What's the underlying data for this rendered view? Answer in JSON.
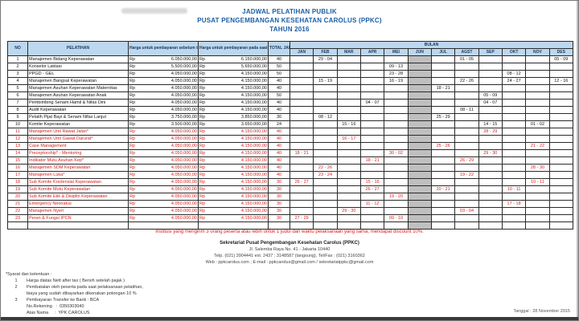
{
  "page_title": {
    "line1": "JADWAL PELATIHAN PUBLIK",
    "line2": "PUSAT PENGEMBANGAN KESEHATAN CAROLUS (PPKC)",
    "line3": "TAHUN 2016"
  },
  "colors": {
    "title_blue": "#1b5ea6",
    "header_fill": "#bdd7ee",
    "red_text": "#d42020",
    "jun_shade": "#bfbfbf"
  },
  "table": {
    "headers": {
      "no": "NO",
      "pelatihan": "PELATIHAN",
      "price_before": "Harga untuk pembayaran sebelum tanggal pelaksanaan*",
      "price_onsite": "Harga untuk pembayaran pada saat pelaksanaan*",
      "total_jam": "TOTAL JAM",
      "bulan": "BULAN"
    },
    "months": [
      "JAN",
      "FEB",
      "MAR",
      "APR",
      "MEI",
      "JUN",
      "JUL",
      "AGST",
      "SEP",
      "OKT",
      "NOV",
      "DES"
    ],
    "currency": "Rp",
    "rows": [
      {
        "no": "1",
        "name": "Manajemen Bidang Keperawatan",
        "price_before": "6.050.000,00",
        "price_onsite": "6.150.000,00",
        "jam": "40",
        "red": false,
        "schedule": {
          "FEB": "29 - 04",
          "AGST": "01 - 05",
          "DES": "05 - 09"
        }
      },
      {
        "no": "2",
        "name": "Konselor Laktasi",
        "price_before": "5.500.000,00",
        "price_onsite": "5.650.000,00",
        "jam": "50",
        "red": false,
        "schedule": {
          "MEI": "09 - 13"
        }
      },
      {
        "no": "3",
        "name": "PPGD - GEL",
        "price_before": "4.050.000,00",
        "price_onsite": "4.150.000,00",
        "jam": "50",
        "red": false,
        "schedule": {
          "MEI": "23 - 28",
          "OKT": "08 - 12"
        }
      },
      {
        "no": "4",
        "name": "Manajemen Bangsal Keperawatan",
        "price_before": "4.050.000,00",
        "price_onsite": "4.150.000,00",
        "jam": "40",
        "red": false,
        "schedule": {
          "FEB": "15 - 19",
          "MEI": "16 - 19",
          "AGST": "22 - 26",
          "OKT": "24 - 27",
          "DES": "12 - 16"
        }
      },
      {
        "no": "5",
        "name": "Manajemen Asuhan Keperawatan Maternitas",
        "price_before": "4.050.000,00",
        "price_onsite": "4.150.000,00",
        "jam": "40",
        "red": false,
        "schedule": {
          "JUL": "18 - 21"
        }
      },
      {
        "no": "6",
        "name": "Manajemen Asuhan Keperawatan Anak",
        "price_before": "4.050.000,00",
        "price_onsite": "4.150.000,00",
        "jam": "50",
        "red": false,
        "schedule": {
          "SEP": "05 - 09"
        }
      },
      {
        "no": "7",
        "name": "Pembimbing Senam Hamil & Nifas Dini",
        "price_before": "4.050.000,00",
        "price_onsite": "4.150.000,00",
        "jam": "40",
        "red": false,
        "schedule": {
          "APR": "04 - 07",
          "SEP": "04 - 07"
        }
      },
      {
        "no": "8",
        "name": "Audit Keperawatan",
        "price_before": "4.050.000,00",
        "price_onsite": "4.150.000,00",
        "jam": "40",
        "red": false,
        "schedule": {
          "AGST": "08 - 11"
        }
      },
      {
        "no": "9",
        "name": "Pelatih Pijat Bayi & Senam Nifas Lanjut",
        "price_before": "3.750.000,00",
        "price_onsite": "3.850.000,00",
        "jam": "30",
        "red": false,
        "schedule": {
          "FEB": "08 - 12",
          "JUL": "25 - 29"
        }
      },
      {
        "no": "10",
        "name": "Komite Keperawatan",
        "price_before": "3.500.000,00",
        "price_onsite": "3.650.000,00",
        "jam": "24",
        "red": false,
        "schedule": {
          "MAR": "15 - 16",
          "SEP": "14 - 15",
          "NOV": "01 - 02"
        }
      },
      {
        "no": "11",
        "name": "Manajemen Unit Rawat Jalan*",
        "price_before": "4.050.000,00",
        "price_onsite": "4.150.000,00",
        "jam": "40",
        "red": true,
        "schedule": {
          "SEP": "28 - 29"
        }
      },
      {
        "no": "12",
        "name": "Manajemen Unit Gawat Darurat*",
        "price_before": "4.050.000,00",
        "price_onsite": "4.150.000,00",
        "jam": "40",
        "red": true,
        "schedule": {
          "MAR": "16 - 17"
        }
      },
      {
        "no": "13",
        "name": "Case Management",
        "price_before": "4.050.000,00",
        "price_onsite": "4.150.000,00",
        "jam": "40",
        "red": true,
        "schedule": {
          "JUL": "25 - 26",
          "NOV": "21 - 22"
        }
      },
      {
        "no": "14",
        "name": "Preceptorship* - Mentoring",
        "price_before": "4.050.000,00",
        "price_onsite": "4.150.000,00",
        "jam": "40",
        "red": true,
        "schedule": {
          "JAN": "18 - 21",
          "MEI": "30 - 02",
          "SEP": "29 - 30"
        }
      },
      {
        "no": "15",
        "name": "Indikator Mutu Asuhan Kep*",
        "price_before": "4.050.000,00",
        "price_onsite": "4.150.000,00",
        "jam": "40",
        "red": true,
        "schedule": {
          "APR": "18 - 21",
          "AGST": "26 - 29"
        }
      },
      {
        "no": "16",
        "name": "Manajemen SDM Keperawatan",
        "price_before": "4.050.000,00",
        "price_onsite": "4.150.000,00",
        "jam": "40",
        "red": true,
        "schedule": {
          "FEB": "22 - 26",
          "NOV": "28 - 30"
        }
      },
      {
        "no": "17",
        "name": "Manajemen Luka*",
        "price_before": "4.050.000,00",
        "price_onsite": "4.150.000,00",
        "jam": "40",
        "red": true,
        "schedule": {
          "FEB": "23 - 24",
          "AGST": "19 - 22"
        }
      },
      {
        "no": "18",
        "name": "Sub Komite Kredensial Keperawatan",
        "price_before": "4.050.000,00",
        "price_onsite": "4.150.000,00",
        "jam": "30",
        "red": true,
        "schedule": {
          "JAN": "26 - 27",
          "APR": "15 - 16",
          "NOV": "10 - 11"
        }
      },
      {
        "no": "19",
        "name": "Sub Komite Mutu Keperawatan",
        "price_before": "4.050.000,00",
        "price_onsite": "4.150.000,00",
        "jam": "30",
        "red": true,
        "schedule": {
          "APR": "26 - 27",
          "JUL": "20 - 21",
          "OKT": "10 - 11"
        }
      },
      {
        "no": "20",
        "name": "Sub Komite Etik & Disiplin Keperawatan",
        "price_before": "4.050.000,00",
        "price_onsite": "4.150.000,00",
        "jam": "30",
        "red": true,
        "schedule": {
          "MEI": "19 - 20"
        }
      },
      {
        "no": "21",
        "name": "Emergency Neonatus",
        "price_before": "4.050.000,00",
        "price_onsite": "4.150.000,00",
        "jam": "30",
        "red": true,
        "schedule": {
          "APR": "11 - 12",
          "OKT": "17 - 18"
        }
      },
      {
        "no": "22",
        "name": "Manajemen Nyeri",
        "price_before": "4.050.000,00",
        "price_onsite": "4.150.000,00",
        "jam": "30",
        "red": true,
        "schedule": {
          "MAR": "29 - 30",
          "AGST": "03 - 04"
        }
      },
      {
        "no": "23",
        "name": "Peran & Fungsi IPCN",
        "price_before": "4.050.000,00",
        "price_onsite": "4.150.000,00",
        "jam": "30",
        "red": true,
        "schedule": {
          "JAN": "27 - 29",
          "MEI": "09 - 10"
        }
      }
    ]
  },
  "discount_note": "Institusi yang mengirim 3 orang peserta atau lebih untuk 1 judul dan waktu pelaksanaan yang sama, mendapat discount 10%.",
  "contact": {
    "line1": "Sekretariat Pusat Pengembangan Kesehatan Carolus (PPKC)",
    "line2": "Jl. Salemba Raya No. 41 - Jakarta 10440",
    "line3": "Telp. (021) 3904441 ext. 2437 ; 3148587 (langsung), Tel/Fax : (021) 3160362",
    "line4": "Web : ppkcarolus.com ; E-mail : ppkcarolus@gmail.com / sekretariatppkc@gmail.com"
  },
  "footnotes": {
    "heading": "*Syarat dan ketentuan :",
    "items": [
      {
        "num": "1",
        "text": "Harga diatas Nett after tax ( Bersih setelah pajak )"
      },
      {
        "num": "2",
        "text": "Pembatalan oleh peserta pada saat pelaksanaan pelatihan,"
      },
      {
        "num": "",
        "text": "biaya yang sudah dibayarkan dikenakan potongan 10 %"
      },
      {
        "num": "3",
        "text": "Pembayaran Transfer ke Bank : BCA"
      },
      {
        "num": "",
        "text": "No.Rekening   :  0350303040"
      },
      {
        "num": "",
        "text": "Atas Nama     :  YPK CAROLUS"
      }
    ]
  },
  "footer": {
    "date": "Tanggal : 28 November 2015"
  }
}
